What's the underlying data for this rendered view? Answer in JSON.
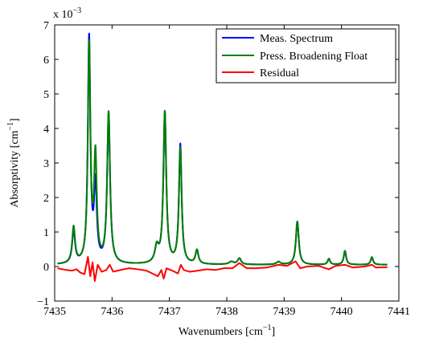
{
  "chart_data": {
    "type": "line",
    "title": "",
    "xlabel": "Wavenumbers [cm",
    "xlabel_sup": "−1",
    "xlabel_end": "]",
    "ylabel": "Absorptivity [cm",
    "ylabel_sup": "−1",
    "ylabel_end": "]",
    "y_multiplier_base": "x 10",
    "y_multiplier_exp": "−3",
    "xlim": [
      7435,
      7441
    ],
    "ylim": [
      -1,
      7
    ],
    "xticks": [
      7435,
      7436,
      7437,
      7438,
      7439,
      7440,
      7441
    ],
    "yticks": [
      -1,
      0,
      1,
      2,
      3,
      4,
      5,
      6,
      7
    ],
    "ytick_labels": [
      "−1",
      "0",
      "1",
      "2",
      "3",
      "4",
      "5",
      "6",
      "7"
    ],
    "grid": false,
    "legend_position": "top-right",
    "baseline": 0.05,
    "peaks": [
      {
        "x0": 7435.33,
        "amp": 0.95,
        "w": 0.03
      },
      {
        "x0": 7435.6,
        "amp": 6.55,
        "w": 0.026
      },
      {
        "x0": 7435.71,
        "amp": 2.2,
        "w": 0.028
      },
      {
        "x0": 7435.94,
        "amp": 4.35,
        "w": 0.03
      },
      {
        "x0": 7436.78,
        "amp": 0.45,
        "w": 0.04
      },
      {
        "x0": 7436.92,
        "amp": 4.35,
        "w": 0.03
      },
      {
        "x0": 7437.19,
        "amp": 3.45,
        "w": 0.028
      },
      {
        "x0": 7437.48,
        "amp": 0.4,
        "w": 0.03
      },
      {
        "x0": 7438.08,
        "amp": 0.08,
        "w": 0.05
      },
      {
        "x0": 7438.22,
        "amp": 0.18,
        "w": 0.035
      },
      {
        "x0": 7438.9,
        "amp": 0.08,
        "w": 0.04
      },
      {
        "x0": 7439.23,
        "amp": 1.25,
        "w": 0.03
      },
      {
        "x0": 7439.78,
        "amp": 0.17,
        "w": 0.025
      },
      {
        "x0": 7440.06,
        "amp": 0.4,
        "w": 0.025
      },
      {
        "x0": 7440.53,
        "amp": 0.22,
        "w": 0.025
      }
    ],
    "series": [
      {
        "name": "Meas. Spectrum",
        "color": "#0000ff",
        "amp_scale": 1.0
      },
      {
        "name": "Press. Broadening Float",
        "color": "#007f00",
        "amp_scale": 1.0,
        "peak_overrides": {
          "1": 6.3,
          "2": 3.05,
          "3": 4.38,
          "5": 4.4,
          "6": 3.35,
          "0": 1.05
        }
      },
      {
        "name": "Residual",
        "color": "#ff0000",
        "residual": true,
        "points": [
          [
            7435.05,
            -0.05
          ],
          [
            7435.2,
            -0.1
          ],
          [
            7435.3,
            -0.12
          ],
          [
            7435.38,
            -0.08
          ],
          [
            7435.45,
            -0.18
          ],
          [
            7435.52,
            -0.22
          ],
          [
            7435.58,
            0.28
          ],
          [
            7435.62,
            -0.28
          ],
          [
            7435.66,
            0.12
          ],
          [
            7435.7,
            -0.42
          ],
          [
            7435.75,
            0.05
          ],
          [
            7435.82,
            -0.15
          ],
          [
            7435.9,
            -0.1
          ],
          [
            7435.96,
            0.05
          ],
          [
            7436.02,
            -0.15
          ],
          [
            7436.1,
            -0.12
          ],
          [
            7436.2,
            -0.08
          ],
          [
            7436.3,
            -0.05
          ],
          [
            7436.45,
            -0.08
          ],
          [
            7436.6,
            -0.12
          ],
          [
            7436.7,
            -0.2
          ],
          [
            7436.8,
            -0.28
          ],
          [
            7436.86,
            -0.1
          ],
          [
            7436.9,
            -0.35
          ],
          [
            7436.95,
            -0.05
          ],
          [
            7437.05,
            -0.12
          ],
          [
            7437.15,
            -0.2
          ],
          [
            7437.2,
            0.05
          ],
          [
            7437.25,
            -0.1
          ],
          [
            7437.35,
            -0.15
          ],
          [
            7437.5,
            -0.12
          ],
          [
            7437.65,
            -0.08
          ],
          [
            7437.8,
            -0.1
          ],
          [
            7437.95,
            -0.05
          ],
          [
            7438.1,
            -0.05
          ],
          [
            7438.22,
            0.1
          ],
          [
            7438.35,
            -0.05
          ],
          [
            7438.5,
            -0.05
          ],
          [
            7438.7,
            -0.03
          ],
          [
            7438.9,
            0.05
          ],
          [
            7439.05,
            0.02
          ],
          [
            7439.2,
            0.15
          ],
          [
            7439.28,
            -0.05
          ],
          [
            7439.4,
            0.0
          ],
          [
            7439.6,
            0.02
          ],
          [
            7439.78,
            -0.08
          ],
          [
            7439.9,
            0.02
          ],
          [
            7440.06,
            0.05
          ],
          [
            7440.2,
            -0.03
          ],
          [
            7440.4,
            0.0
          ],
          [
            7440.53,
            0.05
          ],
          [
            7440.6,
            -0.03
          ],
          [
            7440.8,
            -0.02
          ]
        ]
      }
    ]
  }
}
